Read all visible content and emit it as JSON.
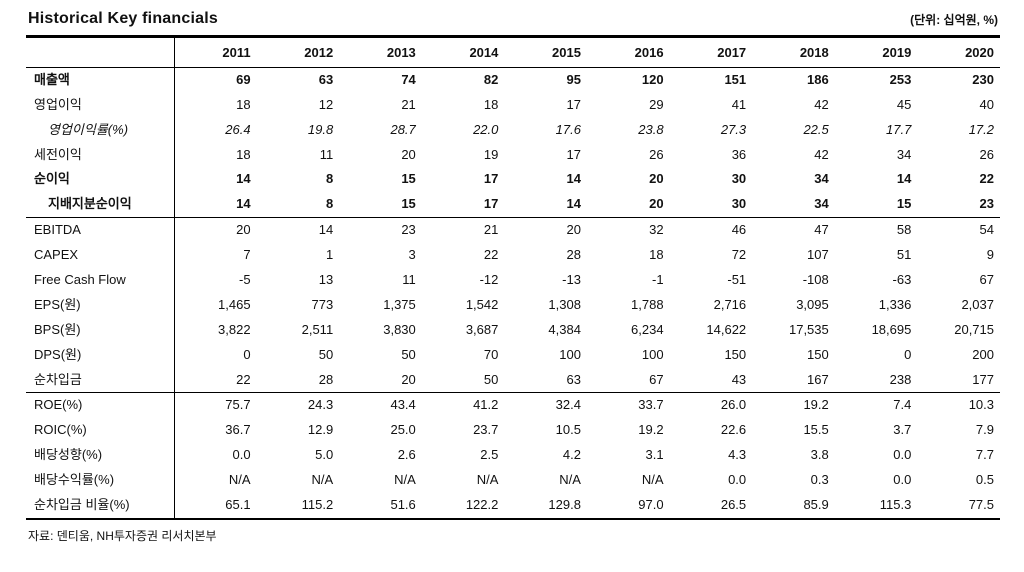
{
  "header": {
    "title": "Historical Key financials",
    "unit_note": "(단위: 십억원, %)"
  },
  "table": {
    "years": [
      "2011",
      "2012",
      "2013",
      "2014",
      "2015",
      "2016",
      "2017",
      "2018",
      "2019",
      "2020"
    ],
    "rows": [
      {
        "label": "매출액",
        "classes": [
          "bold"
        ],
        "group_start": false,
        "values": [
          "69",
          "63",
          "74",
          "82",
          "95",
          "120",
          "151",
          "186",
          "253",
          "230"
        ]
      },
      {
        "label": "영업이익",
        "classes": [],
        "group_start": false,
        "values": [
          "18",
          "12",
          "21",
          "18",
          "17",
          "29",
          "41",
          "42",
          "45",
          "40"
        ]
      },
      {
        "label": "영업이익률(%)",
        "classes": [
          "italic",
          "indent"
        ],
        "group_start": false,
        "values": [
          "26.4",
          "19.8",
          "28.7",
          "22.0",
          "17.6",
          "23.8",
          "27.3",
          "22.5",
          "17.7",
          "17.2"
        ]
      },
      {
        "label": "세전이익",
        "classes": [],
        "group_start": false,
        "values": [
          "18",
          "11",
          "20",
          "19",
          "17",
          "26",
          "36",
          "42",
          "34",
          "26"
        ]
      },
      {
        "label": "순이익",
        "classes": [
          "bold"
        ],
        "group_start": false,
        "values": [
          "14",
          "8",
          "15",
          "17",
          "14",
          "20",
          "30",
          "34",
          "14",
          "22"
        ]
      },
      {
        "label": "지배지분순이익",
        "classes": [
          "bold",
          "indent"
        ],
        "group_start": false,
        "values": [
          "14",
          "8",
          "15",
          "17",
          "14",
          "20",
          "30",
          "34",
          "15",
          "23"
        ]
      },
      {
        "label": "EBITDA",
        "classes": [],
        "group_start": true,
        "values": [
          "20",
          "14",
          "23",
          "21",
          "20",
          "32",
          "46",
          "47",
          "58",
          "54"
        ]
      },
      {
        "label": "CAPEX",
        "classes": [],
        "group_start": false,
        "values": [
          "7",
          "1",
          "3",
          "22",
          "28",
          "18",
          "72",
          "107",
          "51",
          "9"
        ]
      },
      {
        "label": "Free Cash Flow",
        "classes": [],
        "group_start": false,
        "values": [
          "-5",
          "13",
          "11",
          "-12",
          "-13",
          "-1",
          "-51",
          "-108",
          "-63",
          "67"
        ]
      },
      {
        "label": "EPS(원)",
        "classes": [],
        "group_start": false,
        "values": [
          "1,465",
          "773",
          "1,375",
          "1,542",
          "1,308",
          "1,788",
          "2,716",
          "3,095",
          "1,336",
          "2,037"
        ]
      },
      {
        "label": "BPS(원)",
        "classes": [],
        "group_start": false,
        "values": [
          "3,822",
          "2,511",
          "3,830",
          "3,687",
          "4,384",
          "6,234",
          "14,622",
          "17,535",
          "18,695",
          "20,715"
        ]
      },
      {
        "label": "DPS(원)",
        "classes": [],
        "group_start": false,
        "values": [
          "0",
          "50",
          "50",
          "70",
          "100",
          "100",
          "150",
          "150",
          "0",
          "200"
        ]
      },
      {
        "label": "순차입금",
        "classes": [],
        "group_start": false,
        "values": [
          "22",
          "28",
          "20",
          "50",
          "63",
          "67",
          "43",
          "167",
          "238",
          "177"
        ]
      },
      {
        "label": "ROE(%)",
        "classes": [],
        "group_start": true,
        "values": [
          "75.7",
          "24.3",
          "43.4",
          "41.2",
          "32.4",
          "33.7",
          "26.0",
          "19.2",
          "7.4",
          "10.3"
        ]
      },
      {
        "label": "ROIC(%)",
        "classes": [],
        "group_start": false,
        "values": [
          "36.7",
          "12.9",
          "25.0",
          "23.7",
          "10.5",
          "19.2",
          "22.6",
          "15.5",
          "3.7",
          "7.9"
        ]
      },
      {
        "label": "배당성향(%)",
        "classes": [],
        "group_start": false,
        "values": [
          "0.0",
          "5.0",
          "2.6",
          "2.5",
          "4.2",
          "3.1",
          "4.3",
          "3.8",
          "0.0",
          "7.7"
        ]
      },
      {
        "label": "배당수익률(%)",
        "classes": [],
        "group_start": false,
        "values": [
          "N/A",
          "N/A",
          "N/A",
          "N/A",
          "N/A",
          "N/A",
          "0.0",
          "0.3",
          "0.0",
          "0.5"
        ]
      },
      {
        "label": "순차입금 비율(%)",
        "classes": [],
        "group_start": false,
        "values": [
          "65.1",
          "115.2",
          "51.6",
          "122.2",
          "129.8",
          "97.0",
          "26.5",
          "85.9",
          "115.3",
          "77.5"
        ]
      }
    ]
  },
  "footer": {
    "source": "자료: 덴티움, NH투자증권 리서치본부"
  }
}
